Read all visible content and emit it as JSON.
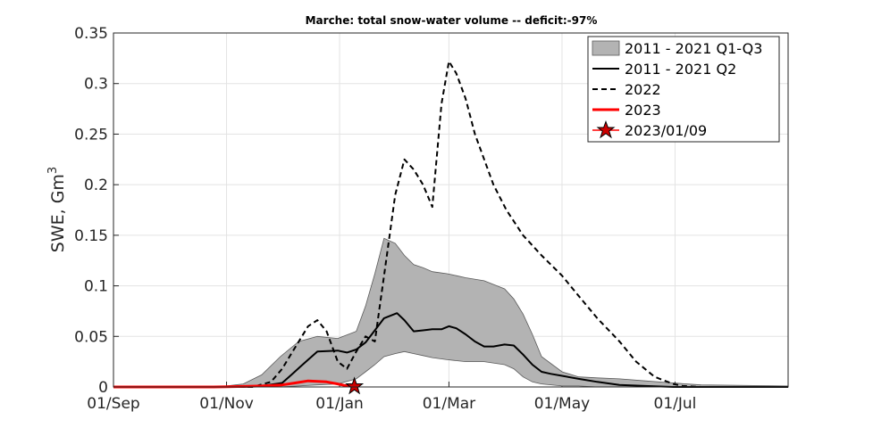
{
  "chart_data": {
    "type": "area",
    "title": "Marche: total snow-water volume -- deficit:-97%",
    "xlabel": "",
    "ylabel": "SWE, Gm",
    "ylabel_superscript": "3",
    "x_units": "date",
    "xlim": [
      "2022-09-01",
      "2023-08-31"
    ],
    "ylim": [
      0,
      0.35
    ],
    "grid": true,
    "legend_position": "top-right",
    "x_ticks": [
      {
        "date": "2022-09-01",
        "label": "01/Sep"
      },
      {
        "date": "2022-11-01",
        "label": "01/Nov"
      },
      {
        "date": "2023-01-01",
        "label": "01/Jan"
      },
      {
        "date": "2023-03-01",
        "label": "01/Mar"
      },
      {
        "date": "2023-05-01",
        "label": "01/May"
      },
      {
        "date": "2023-07-01",
        "label": "01/Jul"
      }
    ],
    "y_ticks": [
      {
        "value": 0,
        "label": "0"
      },
      {
        "value": 0.05,
        "label": "0.05"
      },
      {
        "value": 0.1,
        "label": "0.1"
      },
      {
        "value": 0.15,
        "label": "0.15"
      },
      {
        "value": 0.2,
        "label": "0.2"
      },
      {
        "value": 0.25,
        "label": "0.25"
      },
      {
        "value": 0.3,
        "label": "0.3"
      },
      {
        "value": 0.35,
        "label": "0.35"
      }
    ],
    "series": [
      {
        "name": "2011 - 2021 Q1-Q3",
        "kind": "band",
        "color": "#b3b3b3",
        "edge_color": "#5a5a5a",
        "x": [
          "2022-09-01",
          "2022-10-15",
          "2022-11-01",
          "2022-11-10",
          "2022-11-20",
          "2022-11-30",
          "2022-12-10",
          "2022-12-20",
          "2022-12-31",
          "2023-01-10",
          "2023-01-15",
          "2023-01-20",
          "2023-01-25",
          "2023-01-31",
          "2023-02-05",
          "2023-02-10",
          "2023-02-15",
          "2023-02-20",
          "2023-02-28",
          "2023-03-05",
          "2023-03-10",
          "2023-03-20",
          "2023-03-31",
          "2023-04-05",
          "2023-04-10",
          "2023-04-15",
          "2023-04-20",
          "2023-05-01",
          "2023-05-10",
          "2023-05-20",
          "2023-06-01",
          "2023-06-15",
          "2023-06-30",
          "2023-07-15",
          "2023-08-31"
        ],
        "upper": [
          0,
          0,
          0.001,
          0.003,
          0.012,
          0.03,
          0.045,
          0.05,
          0.048,
          0.055,
          0.08,
          0.112,
          0.147,
          0.142,
          0.13,
          0.121,
          0.118,
          0.114,
          0.112,
          0.11,
          0.108,
          0.105,
          0.097,
          0.087,
          0.072,
          0.052,
          0.03,
          0.015,
          0.01,
          0.009,
          0.008,
          0.006,
          0.004,
          0.002,
          0.001
        ],
        "lower": [
          0,
          0,
          0,
          0,
          0,
          0,
          0.001,
          0.002,
          0.003,
          0.008,
          0.015,
          0.022,
          0.03,
          0.033,
          0.035,
          0.033,
          0.031,
          0.029,
          0.027,
          0.026,
          0.025,
          0.025,
          0.022,
          0.018,
          0.01,
          0.005,
          0.003,
          0.001,
          0.001,
          0,
          0,
          0,
          0,
          0,
          0
        ]
      },
      {
        "name": "2011 - 2021 Q2",
        "kind": "line",
        "color": "#000000",
        "dash": "solid",
        "x": [
          "2022-09-01",
          "2022-11-10",
          "2022-11-20",
          "2022-12-01",
          "2022-12-06",
          "2022-12-12",
          "2022-12-20",
          "2022-12-31",
          "2023-01-05",
          "2023-01-10",
          "2023-01-15",
          "2023-01-20",
          "2023-01-25",
          "2023-02-01",
          "2023-02-05",
          "2023-02-10",
          "2023-02-15",
          "2023-02-20",
          "2023-02-25",
          "2023-03-01",
          "2023-03-05",
          "2023-03-10",
          "2023-03-15",
          "2023-03-20",
          "2023-03-25",
          "2023-03-31",
          "2023-04-05",
          "2023-04-10",
          "2023-04-15",
          "2023-04-20",
          "2023-04-25",
          "2023-05-01",
          "2023-05-10",
          "2023-05-20",
          "2023-06-01",
          "2023-06-15",
          "2023-06-30",
          "2023-08-31"
        ],
        "y": [
          0,
          0,
          0.001,
          0.004,
          0.012,
          0.022,
          0.035,
          0.036,
          0.034,
          0.037,
          0.044,
          0.056,
          0.068,
          0.073,
          0.066,
          0.055,
          0.056,
          0.057,
          0.057,
          0.06,
          0.058,
          0.052,
          0.045,
          0.04,
          0.04,
          0.042,
          0.041,
          0.032,
          0.022,
          0.015,
          0.013,
          0.011,
          0.008,
          0.005,
          0.002,
          0.001,
          0,
          0
        ]
      },
      {
        "name": "2022",
        "kind": "line",
        "color": "#000000",
        "dash": "dashed",
        "x": [
          "2022-09-01",
          "2022-11-15",
          "2022-11-25",
          "2022-12-01",
          "2022-12-05",
          "2022-12-10",
          "2022-12-15",
          "2022-12-20",
          "2022-12-25",
          "2022-12-31",
          "2023-01-05",
          "2023-01-10",
          "2023-01-15",
          "2023-01-20",
          "2023-01-25",
          "2023-01-31",
          "2023-02-05",
          "2023-02-10",
          "2023-02-15",
          "2023-02-20",
          "2023-02-25",
          "2023-03-01",
          "2023-03-05",
          "2023-03-10",
          "2023-03-15",
          "2023-03-25",
          "2023-04-01",
          "2023-04-10",
          "2023-04-20",
          "2023-05-01",
          "2023-05-10",
          "2023-05-20",
          "2023-06-01",
          "2023-06-10",
          "2023-06-20",
          "2023-06-30",
          "2023-07-05",
          "2023-07-15",
          "2023-08-31"
        ],
        "y": [
          0,
          0,
          0.005,
          0.018,
          0.03,
          0.045,
          0.06,
          0.066,
          0.055,
          0.025,
          0.018,
          0.035,
          0.05,
          0.045,
          0.11,
          0.19,
          0.225,
          0.215,
          0.2,
          0.178,
          0.28,
          0.322,
          0.31,
          0.285,
          0.25,
          0.2,
          0.175,
          0.15,
          0.13,
          0.11,
          0.09,
          0.068,
          0.045,
          0.025,
          0.01,
          0.003,
          0.001,
          0,
          0
        ]
      },
      {
        "name": "2023",
        "kind": "line",
        "color": "#ff0000",
        "dash": "solid",
        "x": [
          "2022-09-01",
          "2022-10-25",
          "2022-11-10",
          "2022-11-20",
          "2022-12-01",
          "2022-12-08",
          "2022-12-15",
          "2022-12-20",
          "2022-12-25",
          "2022-12-31",
          "2023-01-05",
          "2023-01-09"
        ],
        "y": [
          0,
          0,
          0.0005,
          0.001,
          0.002,
          0.004,
          0.006,
          0.0055,
          0.005,
          0.003,
          0.001,
          0.0005
        ]
      },
      {
        "name": "2023/01/09",
        "kind": "marker",
        "color": "#cc0000",
        "edge_color": "#000000",
        "marker": "star",
        "x": "2023-01-09",
        "y": 0.0005
      }
    ]
  }
}
